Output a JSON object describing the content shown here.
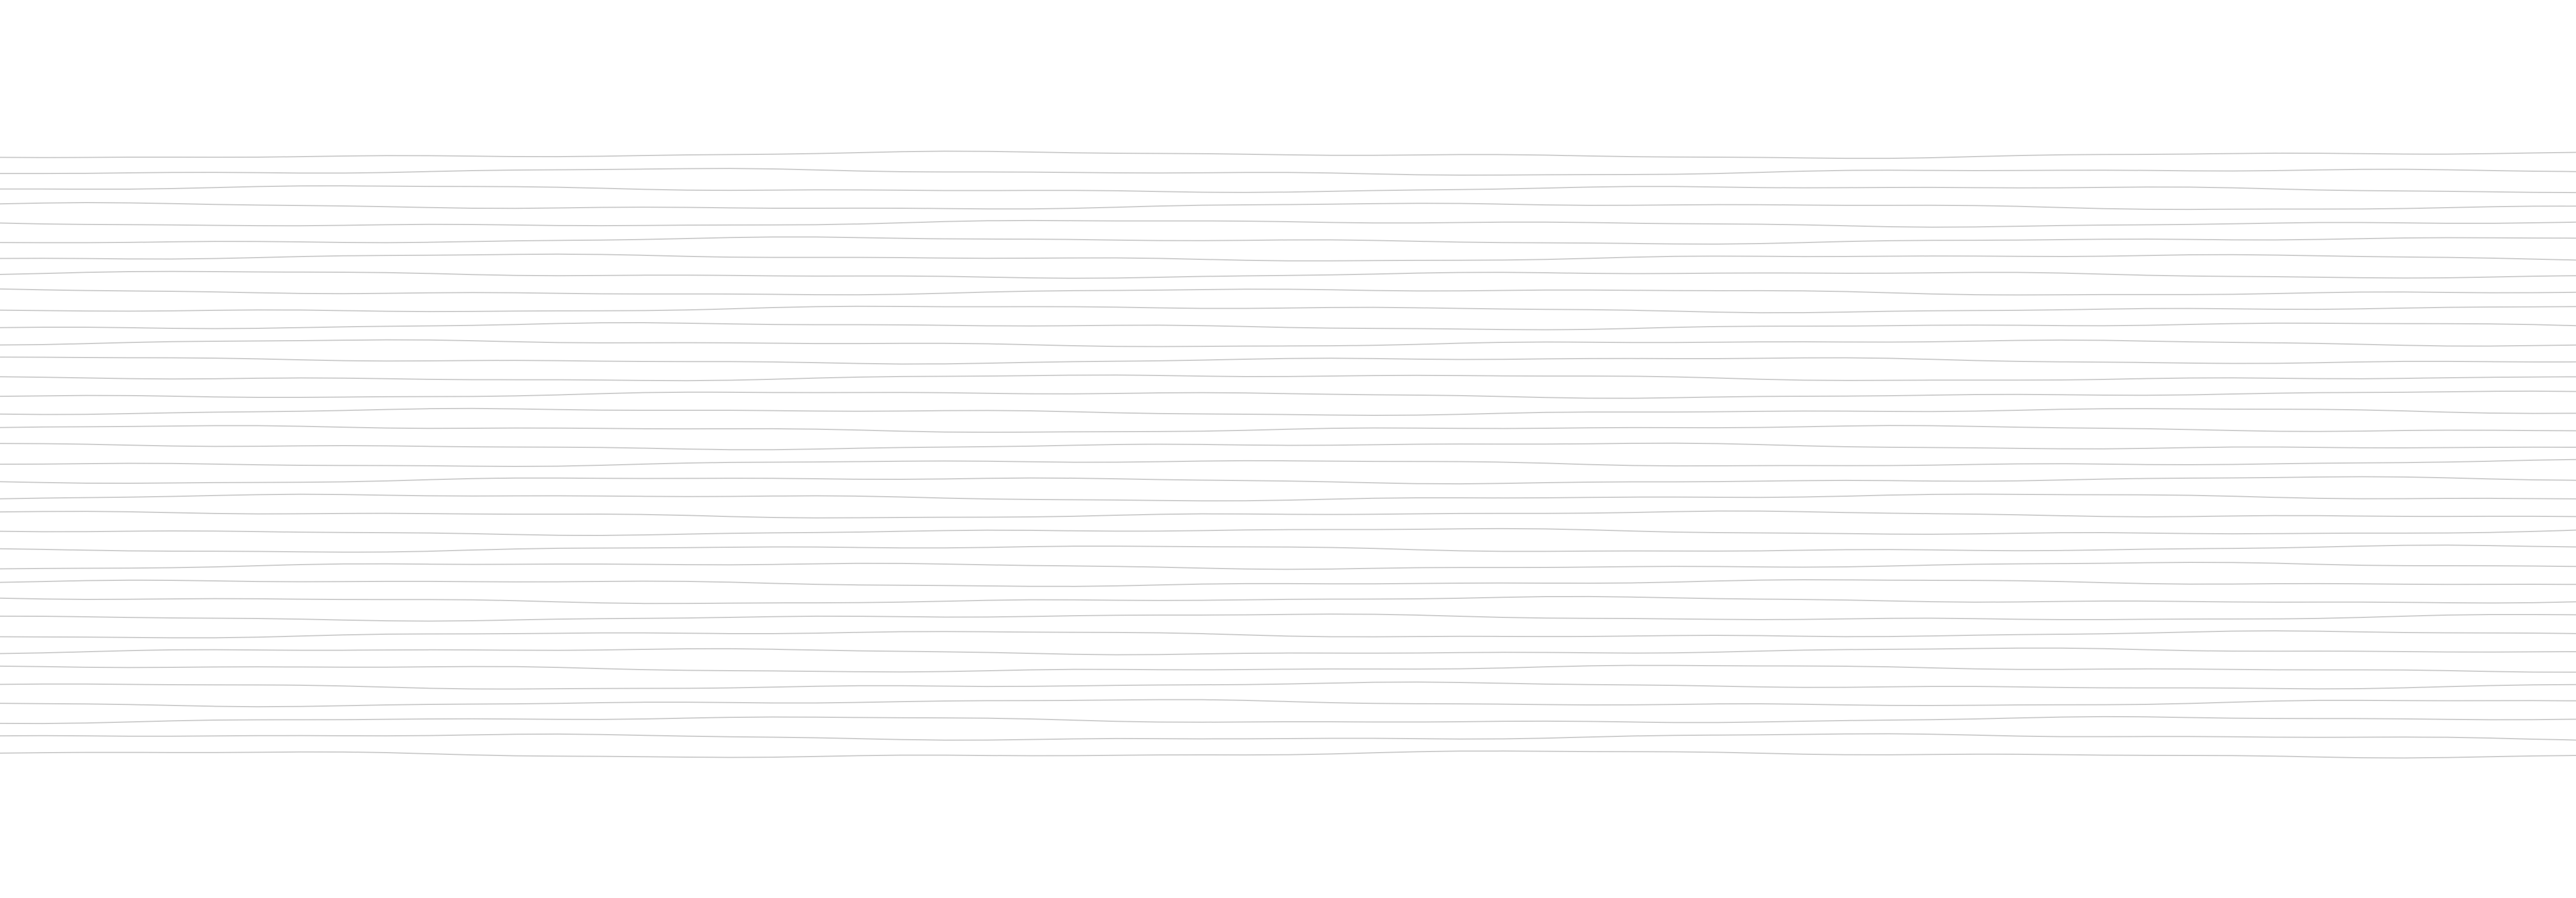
{
  "background_color": "#ffffff",
  "line_color": "#c8c8c8",
  "line_count": 36,
  "pattern": "horizontal-wavy-lines"
}
